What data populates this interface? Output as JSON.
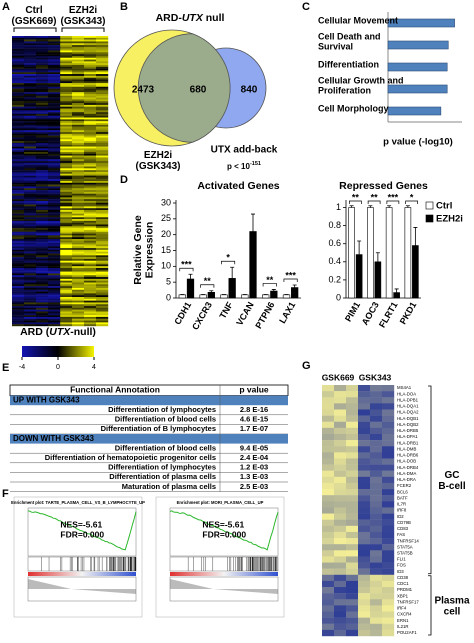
{
  "panel_labels": [
    "A",
    "B",
    "C",
    "D",
    "E",
    "F",
    "G"
  ],
  "heatmap_a": {
    "columns": [
      "Ctrl\n(GSK669)",
      "EZH2i\n(GSK343)"
    ],
    "title_parts": [
      "ARD (",
      "UTX",
      "-null)"
    ],
    "colorbar_ticks": [
      -4,
      0,
      4
    ]
  },
  "venn": {
    "title_parts": [
      "ARD-",
      "UTX",
      " null"
    ],
    "left_only": 2473,
    "overlap": 680,
    "right_only": 840,
    "left_label": "EZH2i\n(GSK343)",
    "right_label": "UTX add-back",
    "p_parts": [
      "p < 10",
      "-151"
    ]
  },
  "chart_data": [
    {
      "type": "bar",
      "orientation": "horizontal",
      "categories": [
        "Cellular Movement",
        "Cell Death and\nSurvival",
        "Differentiation",
        "Cellular Growth and\nProliferation",
        "Cell Morphology"
      ],
      "values": [
        31.5,
        28.5,
        28,
        28,
        25
      ],
      "color": "#4f81bd",
      "xlim": [
        0,
        35
      ],
      "xlabel": "p value (-log10)"
    },
    {
      "type": "grouped_bar",
      "title": "Activated Genes",
      "ylabel": "Relative Gene\nExpression",
      "categories": [
        "CDH1",
        "CXCR3",
        "TNF",
        "VCAN",
        "PTPN6",
        "LAX1"
      ],
      "series": [
        {
          "color": "#ffffff",
          "values": [
            1,
            1,
            1,
            1,
            1,
            1
          ],
          "errors": [
            0.1,
            0.1,
            0.1,
            0.1,
            0.1,
            0.1
          ]
        },
        {
          "color": "#000000",
          "values": [
            6,
            1.8,
            6.2,
            21,
            2.2,
            3.3
          ],
          "errors": [
            1.5,
            0.5,
            3.5,
            5.5,
            0.5,
            0.8
          ]
        }
      ],
      "ylim": [
        0,
        30
      ],
      "yticks": [
        0,
        5,
        10,
        15,
        20,
        25,
        30
      ],
      "annotations": [
        {
          "category": "CDH1",
          "text": "***"
        },
        {
          "category": "CXCR3",
          "text": "**"
        },
        {
          "category": "TNF",
          "text": "*"
        },
        {
          "category": "PTPN6",
          "text": "**"
        },
        {
          "category": "LAX1",
          "text": "***"
        }
      ]
    },
    {
      "type": "grouped_bar",
      "title": "Repressed Genes",
      "categories": [
        "PIM1",
        "AOC3",
        "FLRT1",
        "PKD1"
      ],
      "series": [
        {
          "name": "Ctrl",
          "color": "#ffffff",
          "values": [
            1,
            1,
            1,
            1
          ],
          "errors": [
            0.02,
            0.02,
            0.02,
            0.02
          ]
        },
        {
          "name": "EZH2i",
          "color": "#000000",
          "values": [
            0.48,
            0.4,
            0.06,
            0.58
          ],
          "errors": [
            0.15,
            0.1,
            0.04,
            0.2
          ]
        }
      ],
      "ylim": [
        0,
        1.05
      ],
      "yticks": [
        0,
        0.2,
        0.4,
        0.6,
        0.8,
        1
      ],
      "legend": "upper right",
      "annotations": [
        {
          "category": "PIM1",
          "text": "**"
        },
        {
          "category": "AOC3",
          "text": "**"
        },
        {
          "category": "FLRT1",
          "text": "***"
        },
        {
          "category": "PKD1",
          "text": "*"
        }
      ]
    }
  ],
  "table": {
    "header": [
      "Functional Annotation",
      "p value"
    ],
    "sections": [
      {
        "title": "UP WITH GSK343",
        "rows": [
          [
            "Differentiation of lymphocytes",
            "2.8 E-16"
          ],
          [
            "Differentiation of blood cells",
            "4.6 E-15"
          ],
          [
            "Differentiation of B lymphocytes",
            "1.7 E-07"
          ]
        ]
      },
      {
        "title": "DOWN WITH GSK343",
        "rows": [
          [
            "Differentiation of blood cells",
            "9.4 E-05"
          ],
          [
            "Differentiation of hematopoietic progenitor cells",
            "2.4 E-04"
          ],
          [
            "Differentiation of lymphocytes",
            "1.2 E-03"
          ],
          [
            "Differentiation of plasma cells",
            "1.3 E-03"
          ],
          [
            "Maturation of plasma cells",
            "2.5 E-03"
          ]
        ]
      }
    ]
  },
  "gsea": [
    {
      "title": "Enrichment plot: TARTE_PLASMA_CELL_VS_B_LYMPHOCYTE_UP",
      "nes": "NES=-5.61",
      "fdr": "FDR=0.000"
    },
    {
      "title": "Enrichment plot: MORI_PLASMA_CELL_UP",
      "nes": "NES=-5.61",
      "fdr": "FDR=0.000"
    }
  ],
  "heatmap_g": {
    "columns": [
      "GSK669",
      "GSK343"
    ],
    "groups": [
      {
        "label": "GC\nB-cell",
        "genes": [
          "MS4A1",
          "HLA-DOA",
          "HLA-DPB1",
          "HLA-DQA1",
          "HLA-DQA2",
          "HLA-DQB1",
          "HLA-DQB2",
          "HLA-DRB5",
          "HLA-DPA1",
          "HLA-DRB1",
          "HLA-DMB",
          "HLA-DRB6",
          "HLA-DOB",
          "HLA-DRB4",
          "HLA-DMA",
          "HLA-DRA",
          "FCER2",
          "BCL6",
          "BATF",
          "IL7R",
          "IRF8",
          "ID2",
          "CD79B",
          "CD83",
          "FAS",
          "TNFRSF14",
          "STAT5A",
          "STAT5B",
          "FLI1",
          "FOS",
          "ID3"
        ]
      },
      {
        "label": "Plasma\ncell",
        "genes": [
          "CD38",
          "CDC1",
          "PRDM1",
          "XBP1",
          "TNFRSF17",
          "IRF4",
          "CXCR4",
          "ERN1",
          "IL21R",
          "POU2AF1"
        ]
      }
    ]
  }
}
